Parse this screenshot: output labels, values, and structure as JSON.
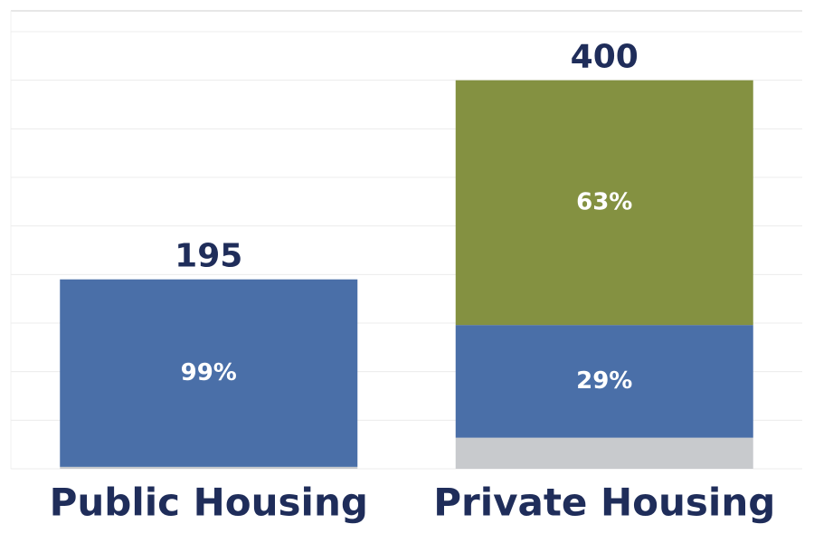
{
  "chart_data": {
    "type": "stacked_bar",
    "categories": [
      "Public Housing",
      "Private Housing"
    ],
    "totals": [
      195,
      400
    ],
    "series": [
      {
        "color": "#c8cacd",
        "values": [
          2,
          32
        ],
        "value_labels": [
          null,
          null
        ]
      },
      {
        "color": "#4a6fa8",
        "values": [
          193,
          116
        ],
        "value_labels": [
          "99%",
          "29%"
        ]
      },
      {
        "color": "#849141",
        "values": [
          0,
          252
        ],
        "value_labels": [
          null,
          "63%"
        ]
      }
    ],
    "ylim": [
      0,
      450
    ],
    "yticks": [
      0,
      50,
      100,
      150,
      200,
      250,
      300,
      350,
      400,
      450
    ],
    "grid": true
  }
}
